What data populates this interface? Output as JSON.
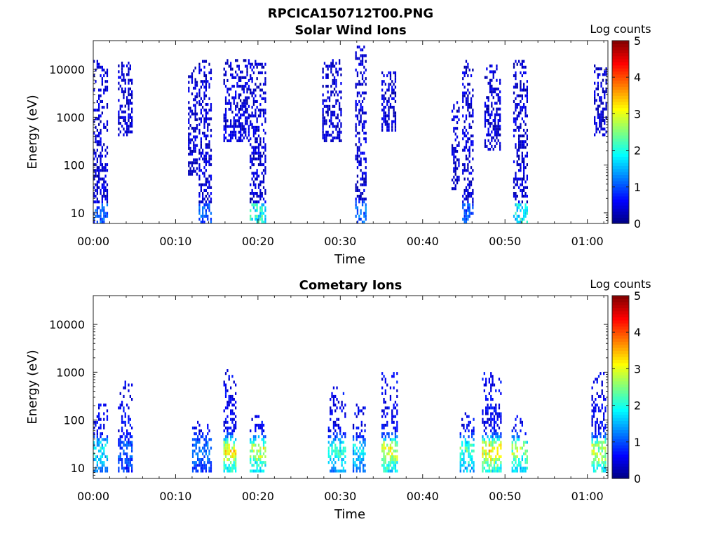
{
  "figure_title": "RPCICA150712T00.PNG",
  "chart_data": [
    {
      "type": "heatmap",
      "title": "Solar Wind Ions",
      "xlabel": "Time",
      "ylabel": "Energy (eV)",
      "y_scale": "log",
      "ylim": [
        6,
        40000
      ],
      "xlim_minutes": [
        0,
        62.5
      ],
      "x_ticks": [
        "00:00",
        "00:10",
        "00:20",
        "00:30",
        "00:40",
        "00:50",
        "01:00"
      ],
      "x_tick_minutes": [
        0,
        10,
        20,
        30,
        40,
        50,
        60
      ],
      "y_ticks": [
        "10",
        "100",
        "1000",
        "10000"
      ],
      "y_tick_values": [
        10,
        100,
        1000,
        10000
      ],
      "colorbar": {
        "label": "Log counts",
        "min": 0,
        "max": 5,
        "ticks": [
          "0",
          "1",
          "2",
          "3",
          "4",
          "5"
        ],
        "colormap": "jet"
      },
      "bursts": [
        {
          "t0": 0.0,
          "t1": 1.6,
          "e_min": 6,
          "e_max": 15000,
          "log_counts": 1.0
        },
        {
          "t0": 3.0,
          "t1": 4.8,
          "e_min": 400,
          "e_max": 14000,
          "log_counts": 0.4
        },
        {
          "t0": 11.5,
          "t1": 12.5,
          "e_min": 60,
          "e_max": 12000,
          "log_counts": 0.3
        },
        {
          "t0": 12.8,
          "t1": 14.3,
          "e_min": 6,
          "e_max": 15000,
          "log_counts": 1.0
        },
        {
          "t0": 15.8,
          "t1": 18.8,
          "e_min": 300,
          "e_max": 15000,
          "log_counts": 0.5
        },
        {
          "t0": 19.0,
          "t1": 20.8,
          "e_min": 6,
          "e_max": 15000,
          "log_counts": 1.9
        },
        {
          "t0": 27.8,
          "t1": 30.0,
          "e_min": 300,
          "e_max": 18000,
          "log_counts": 0.4
        },
        {
          "t0": 31.8,
          "t1": 33.2,
          "e_min": 6,
          "e_max": 35000,
          "log_counts": 1.1
        },
        {
          "t0": 35.0,
          "t1": 36.8,
          "e_min": 500,
          "e_max": 9000,
          "log_counts": 0.4
        },
        {
          "t0": 43.5,
          "t1": 44.5,
          "e_min": 30,
          "e_max": 2000,
          "log_counts": 0.3
        },
        {
          "t0": 44.8,
          "t1": 46.2,
          "e_min": 6,
          "e_max": 15000,
          "log_counts": 1.0
        },
        {
          "t0": 47.5,
          "t1": 49.5,
          "e_min": 200,
          "e_max": 12000,
          "log_counts": 0.4
        },
        {
          "t0": 51.0,
          "t1": 52.8,
          "e_min": 6,
          "e_max": 15000,
          "log_counts": 1.8
        },
        {
          "t0": 60.8,
          "t1": 62.4,
          "e_min": 400,
          "e_max": 12000,
          "log_counts": 0.5
        }
      ]
    },
    {
      "type": "heatmap",
      "title": "Cometary Ions",
      "xlabel": "Time",
      "ylabel": "Energy (eV)",
      "y_scale": "log",
      "ylim": [
        6,
        40000
      ],
      "xlim_minutes": [
        0,
        62.5
      ],
      "x_ticks": [
        "00:00",
        "00:10",
        "00:20",
        "00:30",
        "00:40",
        "00:50",
        "01:00"
      ],
      "x_tick_minutes": [
        0,
        10,
        20,
        30,
        40,
        50,
        60
      ],
      "y_ticks": [
        "10",
        "100",
        "1000",
        "10000"
      ],
      "y_tick_values": [
        10,
        100,
        1000,
        10000
      ],
      "colorbar": {
        "label": "Log counts",
        "min": 0,
        "max": 5,
        "ticks": [
          "0",
          "1",
          "2",
          "3",
          "4",
          "5"
        ],
        "colormap": "jet"
      },
      "bursts": [
        {
          "t0": 0.0,
          "t1": 1.6,
          "e_min": 8,
          "e_max": 200,
          "log_counts": 1.6
        },
        {
          "t0": 3.0,
          "t1": 4.8,
          "e_min": 8,
          "e_max": 600,
          "log_counts": 0.6
        },
        {
          "t0": 12.0,
          "t1": 14.2,
          "e_min": 8,
          "e_max": 90,
          "log_counts": 0.8
        },
        {
          "t0": 15.8,
          "t1": 17.2,
          "e_min": 8,
          "e_max": 1100,
          "log_counts": 3.0
        },
        {
          "t0": 19.0,
          "t1": 20.8,
          "e_min": 8,
          "e_max": 130,
          "log_counts": 2.8
        },
        {
          "t0": 28.5,
          "t1": 30.5,
          "e_min": 8,
          "e_max": 500,
          "log_counts": 1.8
        },
        {
          "t0": 31.5,
          "t1": 33.0,
          "e_min": 8,
          "e_max": 200,
          "log_counts": 1.5
        },
        {
          "t0": 35.0,
          "t1": 37.0,
          "e_min": 8,
          "e_max": 1200,
          "log_counts": 2.9
        },
        {
          "t0": 44.5,
          "t1": 46.2,
          "e_min": 8,
          "e_max": 130,
          "log_counts": 2.0
        },
        {
          "t0": 47.2,
          "t1": 49.5,
          "e_min": 8,
          "e_max": 1000,
          "log_counts": 3.3
        },
        {
          "t0": 50.8,
          "t1": 52.8,
          "e_min": 8,
          "e_max": 120,
          "log_counts": 2.5
        },
        {
          "t0": 60.5,
          "t1": 62.3,
          "e_min": 8,
          "e_max": 900,
          "log_counts": 2.8
        }
      ]
    }
  ]
}
